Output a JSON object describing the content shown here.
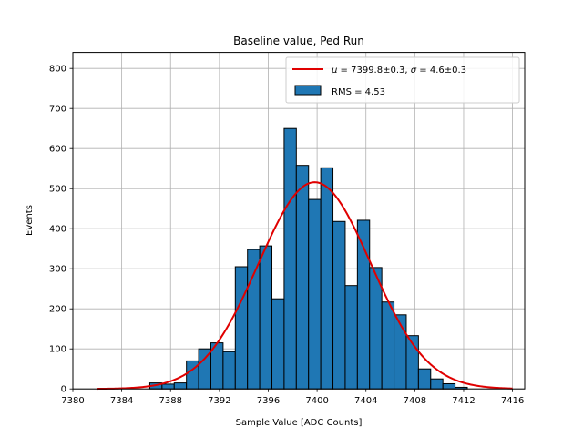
{
  "chart_data": {
    "type": "bar",
    "title": "Baseline value, Ped Run",
    "xlabel": "Sample Value [ADC Counts]",
    "ylabel": "Events",
    "xlim": [
      7380,
      7417
    ],
    "ylim": [
      0,
      840
    ],
    "xticks": [
      7380,
      7384,
      7388,
      7392,
      7396,
      7400,
      7404,
      7408,
      7412,
      7416
    ],
    "yticks": [
      0,
      100,
      200,
      300,
      400,
      500,
      600,
      700,
      800
    ],
    "grid": true,
    "legend_position": "top-right",
    "bin_width": 1,
    "histogram": {
      "name": "RMS = 4.53",
      "color": "#1f77b4",
      "edgecolor": "#000000",
      "bin_lefts": [
        7386.3,
        7387.3,
        7388.3,
        7389.3,
        7390.3,
        7391.3,
        7392.3,
        7393.3,
        7394.3,
        7395.3,
        7396.3,
        7397.3,
        7398.3,
        7399.3,
        7400.3,
        7401.3,
        7402.3,
        7403.3,
        7404.3,
        7405.3,
        7406.3,
        7407.3,
        7408.3,
        7409.3,
        7410.3,
        7411.3
      ],
      "counts": [
        15,
        12,
        15,
        70,
        100,
        115,
        93,
        305,
        348,
        357,
        225,
        650,
        558,
        473,
        552,
        418,
        258,
        421,
        303,
        217,
        185,
        133,
        50,
        25,
        13,
        4
      ]
    },
    "fit": {
      "name_math": "μ = 7399.8±0.3, σ = 4.6±0.3",
      "label_mu": "μ",
      "label_mu_part": " = 7399.8±0.3, ",
      "label_sigma": "σ",
      "label_sigma_part": " = 4.6±0.3",
      "mu": 7399.8,
      "sigma": 4.6,
      "amplitude": 516,
      "x_range": [
        7382,
        7416
      ],
      "color": "#e00000"
    }
  }
}
